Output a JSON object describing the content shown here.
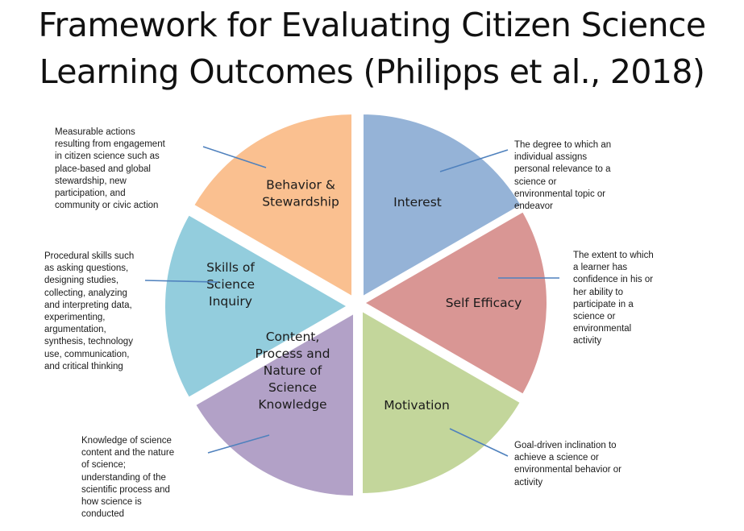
{
  "title": {
    "line1": "Framework for Evaluating Citizen Science",
    "line2": "Learning Outcomes (Philipps et al., 2018)"
  },
  "segments": [
    {
      "id": "interest",
      "label_lines": [
        "Interest"
      ],
      "color": "#95b3d7"
    },
    {
      "id": "self-efficacy",
      "label_lines": [
        "Self Efficacy"
      ],
      "color": "#d99694"
    },
    {
      "id": "motivation",
      "label_lines": [
        "Motivation"
      ],
      "color": "#c3d69b"
    },
    {
      "id": "content",
      "label_lines": [
        "Content,",
        "Process and",
        "Nature of",
        "Science",
        "Knowledge"
      ],
      "color": "#b2a1c7"
    },
    {
      "id": "skills",
      "label_lines": [
        "Skills of",
        "Science",
        "Inquiry"
      ],
      "color": "#93cddd"
    },
    {
      "id": "behavior",
      "label_lines": [
        "Behavior &",
        "Stewardship"
      ],
      "color": "#fac090"
    }
  ],
  "descriptions": {
    "behavior": [
      "Measurable actions",
      "resulting from engagement",
      "in citizen science such as",
      "place-based and global",
      "stewardship, new",
      "participation, and",
      "community or civic action"
    ],
    "interest": [
      "The degree to which an",
      "individual assigns",
      "personal relevance to a",
      "science or",
      "environmental topic or",
      "endeavor"
    ],
    "self_efficacy": [
      "The extent to which",
      "a learner has",
      "confidence in his or",
      "her ability  to",
      "participate in a",
      "science or",
      "environmental",
      "activity"
    ],
    "skills": [
      "Procedural skills such",
      "as asking questions,",
      "designing studies,",
      "collecting, analyzing",
      "and interpreting data,",
      "experimenting,",
      "argumentation,",
      "synthesis, technology",
      "use, communication,",
      "and critical thinking"
    ],
    "content": [
      "Knowledge of science",
      "content and the nature",
      "of science;",
      "understanding of the",
      "scientific process and",
      "how science is",
      "conducted"
    ],
    "motivation": [
      "Goal-driven inclination to",
      "achieve a science or",
      "environmental behavior or",
      "activity"
    ]
  },
  "connector_color": "#4f81bd"
}
